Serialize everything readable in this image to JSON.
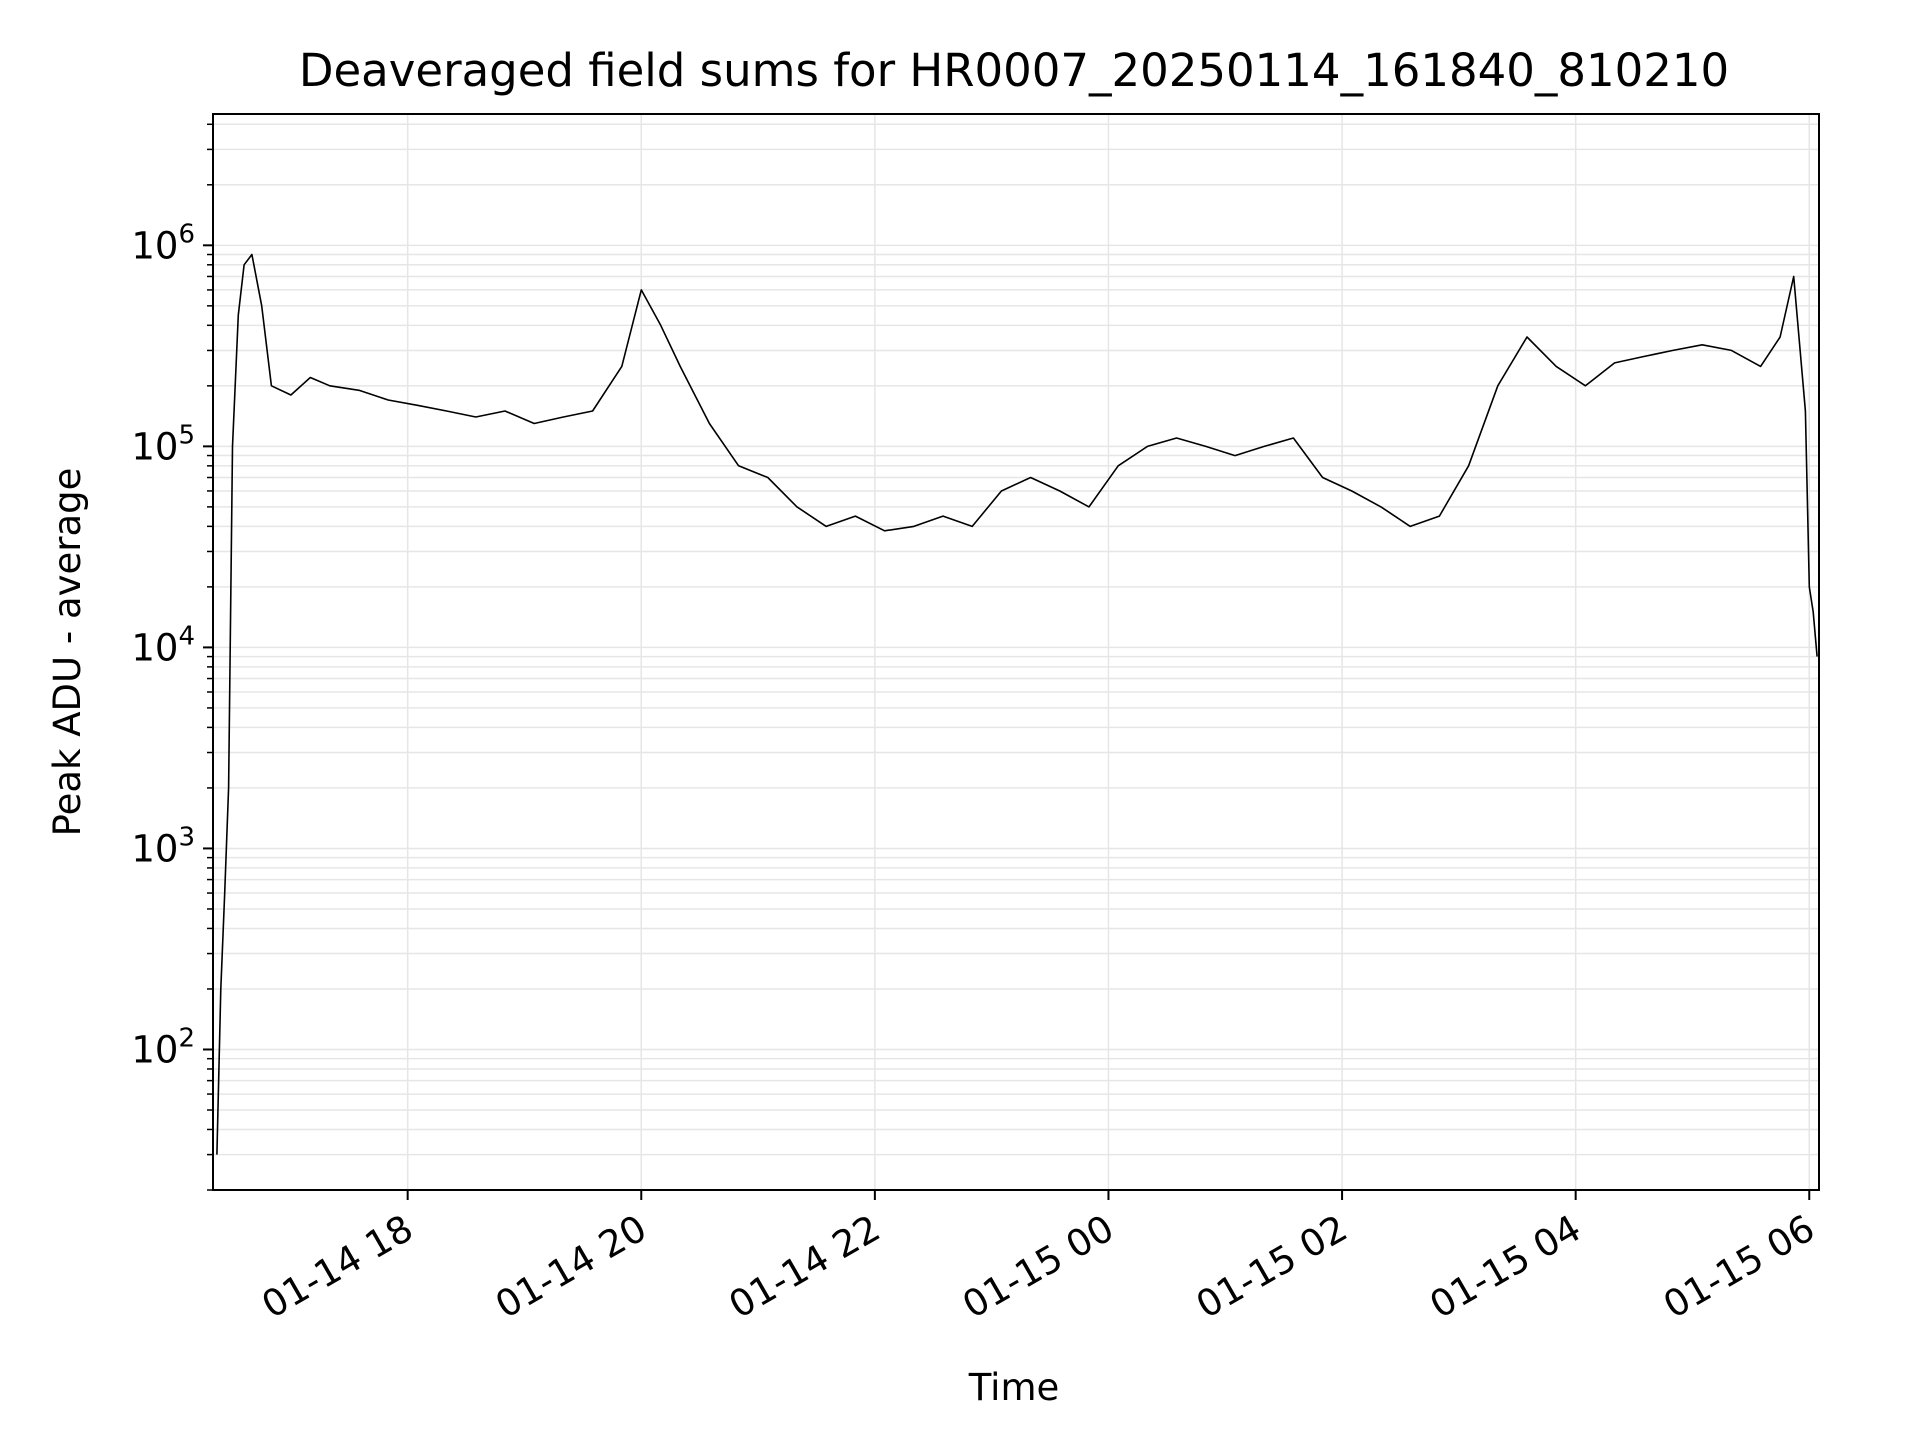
{
  "chart_data": {
    "type": "line",
    "title": "Deaveraged field sums for HR0007_20250114_161840_810210",
    "xlabel": "Time",
    "ylabel": "Peak ADU - average",
    "y_scale": "log",
    "xlim": [
      "2025-01-14T16:20",
      "2025-01-15T06:05"
    ],
    "ylim": [
      20,
      4500000
    ],
    "grid": true,
    "grid_color": "#e6e6e6",
    "line_color": "#000000",
    "x_tick_labels": [
      "01-14 18",
      "01-14 20",
      "01-14 22",
      "01-15 00",
      "01-15 02",
      "01-15 04",
      "01-15 06"
    ],
    "x_tick_values": [
      "2025-01-14T18:00",
      "2025-01-14T20:00",
      "2025-01-14T22:00",
      "2025-01-15T00:00",
      "2025-01-15T02:00",
      "2025-01-15T04:00",
      "2025-01-15T06:00"
    ],
    "y_tick_labels": [
      {
        "base": "10",
        "exp": "2",
        "value": 100
      },
      {
        "base": "10",
        "exp": "3",
        "value": 1000
      },
      {
        "base": "10",
        "exp": "4",
        "value": 10000
      },
      {
        "base": "10",
        "exp": "5",
        "value": 100000
      },
      {
        "base": "10",
        "exp": "6",
        "value": 1000000
      }
    ],
    "series": [
      {
        "x": [
          "2025-01-14T16:22",
          "2025-01-14T16:24",
          "2025-01-14T16:26",
          "2025-01-14T16:28",
          "2025-01-14T16:30",
          "2025-01-14T16:33",
          "2025-01-14T16:36",
          "2025-01-14T16:40",
          "2025-01-14T16:45",
          "2025-01-14T16:50",
          "2025-01-14T17:00",
          "2025-01-14T17:10",
          "2025-01-14T17:20",
          "2025-01-14T17:35",
          "2025-01-14T17:50",
          "2025-01-14T18:05",
          "2025-01-14T18:20",
          "2025-01-14T18:35",
          "2025-01-14T18:50",
          "2025-01-14T19:05",
          "2025-01-14T19:20",
          "2025-01-14T19:35",
          "2025-01-14T19:50",
          "2025-01-14T20:00",
          "2025-01-14T20:10",
          "2025-01-14T20:20",
          "2025-01-14T20:35",
          "2025-01-14T20:50",
          "2025-01-14T21:05",
          "2025-01-14T21:20",
          "2025-01-14T21:35",
          "2025-01-14T21:50",
          "2025-01-14T22:05",
          "2025-01-14T22:20",
          "2025-01-14T22:35",
          "2025-01-14T22:50",
          "2025-01-14T23:05",
          "2025-01-14T23:20",
          "2025-01-14T23:35",
          "2025-01-14T23:50",
          "2025-01-15T00:05",
          "2025-01-15T00:20",
          "2025-01-15T00:35",
          "2025-01-15T00:50",
          "2025-01-15T01:05",
          "2025-01-15T01:20",
          "2025-01-15T01:35",
          "2025-01-15T01:50",
          "2025-01-15T02:05",
          "2025-01-15T02:20",
          "2025-01-15T02:35",
          "2025-01-15T02:50",
          "2025-01-15T03:05",
          "2025-01-15T03:20",
          "2025-01-15T03:35",
          "2025-01-15T03:50",
          "2025-01-15T04:05",
          "2025-01-15T04:20",
          "2025-01-15T04:35",
          "2025-01-15T04:50",
          "2025-01-15T05:05",
          "2025-01-15T05:20",
          "2025-01-15T05:35",
          "2025-01-15T05:45",
          "2025-01-15T05:52",
          "2025-01-15T05:58",
          "2025-01-15T06:00",
          "2025-01-15T06:02",
          "2025-01-15T06:04"
        ],
        "y": [
          30,
          200,
          600,
          2000,
          100000,
          450000,
          800000,
          900000,
          500000,
          200000,
          180000,
          220000,
          200000,
          190000,
          170000,
          160000,
          150000,
          140000,
          150000,
          130000,
          140000,
          150000,
          250000,
          600000,
          400000,
          250000,
          130000,
          80000,
          70000,
          50000,
          40000,
          45000,
          38000,
          40000,
          45000,
          40000,
          60000,
          70000,
          60000,
          50000,
          80000,
          100000,
          110000,
          100000,
          90000,
          100000,
          110000,
          70000,
          60000,
          50000,
          40000,
          45000,
          80000,
          200000,
          350000,
          250000,
          200000,
          260000,
          280000,
          300000,
          320000,
          300000,
          250000,
          350000,
          700000,
          150000,
          20000,
          15000,
          9000
        ]
      }
    ]
  }
}
